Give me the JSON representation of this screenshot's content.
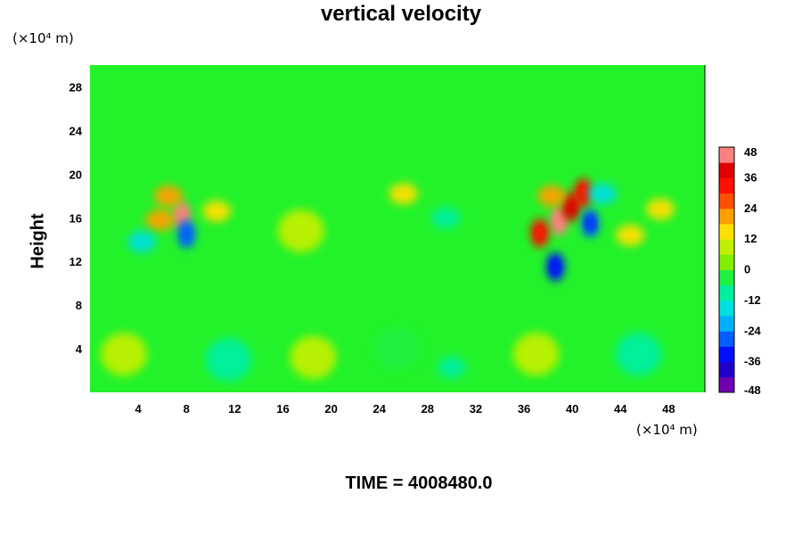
{
  "chart_data": {
    "type": "heatmap",
    "title": "vertical velocity",
    "ylabel": "Height",
    "x_unit": "(×10⁴ m)",
    "y_unit": "(×10⁴ m)",
    "x_ticks": [
      4,
      8,
      12,
      16,
      20,
      24,
      28,
      32,
      36,
      40,
      44,
      48
    ],
    "y_ticks": [
      4,
      8,
      12,
      16,
      20,
      24,
      28
    ],
    "xlim": [
      0,
      51
    ],
    "ylim": [
      0,
      30
    ],
    "colorbar": {
      "ticks": [
        48,
        36,
        24,
        12,
        0,
        -12,
        -24,
        -36,
        -48
      ],
      "range": [
        -48,
        48
      ]
    },
    "features": [
      {
        "x": 7.6,
        "y": 16.2,
        "value": 44
      },
      {
        "x": 6.5,
        "y": 18.0,
        "value": 20
      },
      {
        "x": 5.8,
        "y": 15.8,
        "value": 22
      },
      {
        "x": 8.0,
        "y": 14.5,
        "value": -28
      },
      {
        "x": 4.3,
        "y": 13.8,
        "value": -14
      },
      {
        "x": 10.5,
        "y": 16.6,
        "value": 14
      },
      {
        "x": 38.9,
        "y": 15.7,
        "value": 46
      },
      {
        "x": 39.9,
        "y": 17.0,
        "value": 38
      },
      {
        "x": 40.9,
        "y": 18.3,
        "value": 30
      },
      {
        "x": 37.3,
        "y": 14.6,
        "value": 30
      },
      {
        "x": 38.3,
        "y": 18.0,
        "value": 22
      },
      {
        "x": 41.5,
        "y": 15.5,
        "value": -30
      },
      {
        "x": 38.6,
        "y": 11.5,
        "value": -34
      },
      {
        "x": 42.5,
        "y": 18.2,
        "value": -14
      },
      {
        "x": 44.8,
        "y": 14.4,
        "value": 16
      },
      {
        "x": 47.3,
        "y": 16.8,
        "value": 12
      },
      {
        "x": 26.0,
        "y": 18.2,
        "value": 12
      },
      {
        "x": 29.5,
        "y": 16.0,
        "value": -12
      },
      {
        "x": 17.5,
        "y": 14.8,
        "value": 8
      },
      {
        "x": 2.8,
        "y": 3.5,
        "value": 8
      },
      {
        "x": 18.5,
        "y": 3.2,
        "value": 8
      },
      {
        "x": 37.0,
        "y": 3.5,
        "value": 8
      },
      {
        "x": 11.5,
        "y": 3.0,
        "value": -8
      },
      {
        "x": 30.0,
        "y": 2.3,
        "value": -12
      },
      {
        "x": 45.5,
        "y": 3.5,
        "value": -8
      },
      {
        "x": 25.5,
        "y": 4.0,
        "value": -6
      }
    ]
  },
  "time_label": "TIME = 4008480.0",
  "colors": {
    "background_field": "#22f22a",
    "colormap": [
      "#7000b0",
      "#2000c8",
      "#0010ff",
      "#0060ff",
      "#00b0ff",
      "#00e0e0",
      "#00f0a0",
      "#20f040",
      "#80f000",
      "#c0f000",
      "#ffe000",
      "#ffa000",
      "#ff5000",
      "#ff1000",
      "#e00000",
      "#ff8080"
    ]
  }
}
